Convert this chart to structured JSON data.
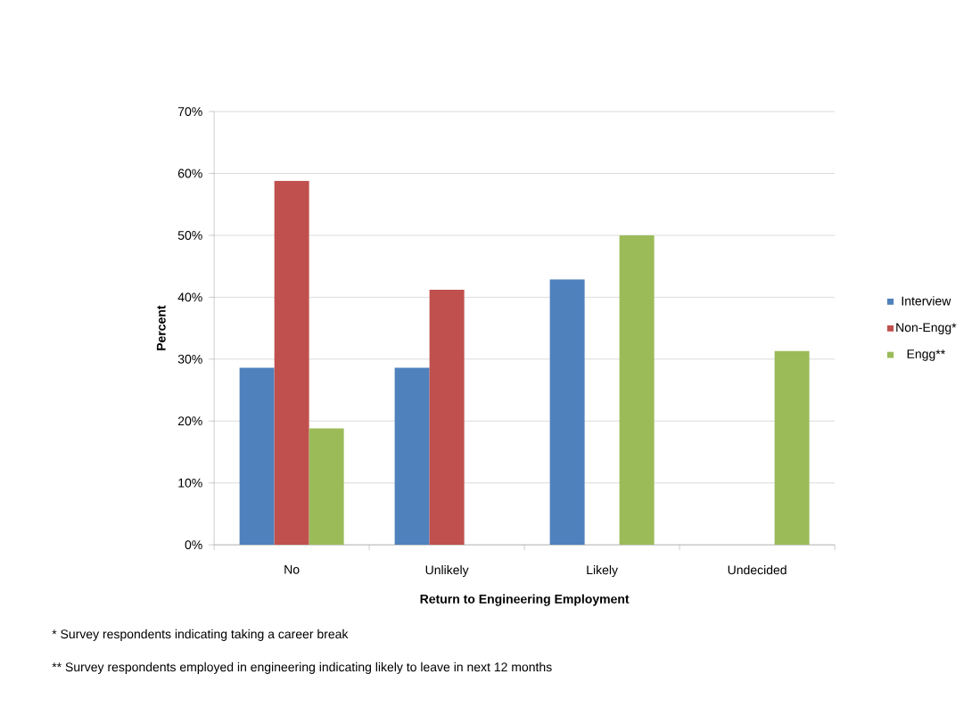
{
  "chart_data": {
    "type": "bar",
    "xlabel": "Return to Engineering Employment",
    "ylabel": "Percent",
    "categories": [
      "No",
      "Unlikely",
      "Likely",
      "Undecided"
    ],
    "series": [
      {
        "name": "Interview",
        "color": "#4f81bd",
        "values": [
          28.6,
          28.6,
          42.9,
          0
        ]
      },
      {
        "name": "Non-Engg*",
        "color": "#c0504d",
        "values": [
          58.8,
          41.2,
          0,
          0
        ]
      },
      {
        "name": "Engg**",
        "color": "#9bbb59",
        "values": [
          18.8,
          0,
          50,
          31.3
        ]
      }
    ],
    "ylim": [
      0,
      70
    ],
    "yticks": [
      {
        "value": 0,
        "label": "0%"
      },
      {
        "value": 10,
        "label": "10%"
      },
      {
        "value": 20,
        "label": "20%"
      },
      {
        "value": 30,
        "label": "30%"
      },
      {
        "value": 40,
        "label": "40%"
      },
      {
        "value": 50,
        "label": "50%"
      },
      {
        "value": 60,
        "label": "60%"
      },
      {
        "value": 70,
        "label": "70%"
      }
    ],
    "grid": "y",
    "legend": "right",
    "annotations": [
      "* Survey  respondents indicating taking a career break",
      "** Survey respondents employed in engineering indicating likely to leave in next 12 months"
    ]
  }
}
